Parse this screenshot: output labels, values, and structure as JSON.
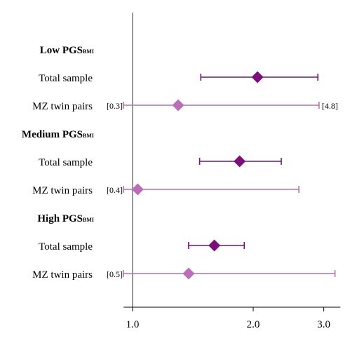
{
  "chart_data": {
    "type": "forest",
    "x_ticks": [
      1.0,
      2.0,
      3.0
    ],
    "x_tick_labels": [
      "1.0",
      "2.0",
      "3.0"
    ],
    "xlim": [
      0.95,
      3.3
    ],
    "x_scale": "log",
    "reference_line": 1.0,
    "colors": {
      "total": "#7B0F7B",
      "twins": "#B86FB8",
      "axis": "#000000",
      "ref_line": "#555555"
    },
    "groups": [
      {
        "label": "Low PGS",
        "subscript": "BMI",
        "rows": [
          {
            "label": "Total sample",
            "estimate": 2.05,
            "lower": 1.48,
            "upper": 2.9,
            "kind": "total"
          },
          {
            "label": "MZ twin pairs",
            "estimate": 1.3,
            "lower": 0.3,
            "upper": 4.8,
            "kind": "twins",
            "lower_clip_label": "[0.3]",
            "upper_clip_label": "[4.8]"
          }
        ]
      },
      {
        "label": "Medium PGS",
        "subscript": "BMI",
        "rows": [
          {
            "label": "Total sample",
            "estimate": 1.85,
            "lower": 1.47,
            "upper": 2.35,
            "kind": "total"
          },
          {
            "label": "MZ twin pairs",
            "estimate": 1.03,
            "lower": 0.4,
            "upper": 2.6,
            "kind": "twins",
            "lower_clip_label": "[0.4]"
          }
        ]
      },
      {
        "label": "High PGS",
        "subscript": "BMI",
        "rows": [
          {
            "label": "Total sample",
            "estimate": 1.6,
            "lower": 1.38,
            "upper": 1.9,
            "kind": "total"
          },
          {
            "label": "MZ twin pairs",
            "estimate": 1.38,
            "lower": 0.5,
            "upper": 3.2,
            "kind": "twins",
            "lower_clip_label": "[0.5]"
          }
        ]
      }
    ]
  }
}
